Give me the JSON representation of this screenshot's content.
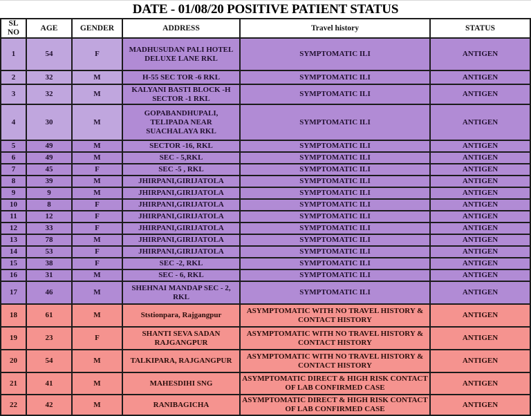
{
  "title": "DATE - 01/08/20 POSITIVE PATIENT STATUS",
  "table": {
    "columns": [
      "SL NO",
      "AGE",
      "GENDER",
      "ADDRESS",
      "Travel history",
      "STATUS"
    ],
    "rows": [
      {
        "sl": "1",
        "age": "54",
        "gender": "F",
        "address": "MADHUSUDAN PALI HOTEL\nDELUXE LANE RKL",
        "travel": "SYMPTOMATIC ILI",
        "status": "ANTIGEN",
        "group": "symptomatic"
      },
      {
        "sl": "2",
        "age": "32",
        "gender": "M",
        "address": "H-55 SEC TOR -6 RKL",
        "travel": "SYMPTOMATIC ILI",
        "status": "ANTIGEN",
        "group": "symptomatic"
      },
      {
        "sl": "3",
        "age": "32",
        "gender": "M",
        "address": "KALYANI BASTI BLOCK -H\nSECTOR -1 RKL",
        "travel": "SYMPTOMATIC ILI",
        "status": "ANTIGEN",
        "group": "symptomatic"
      },
      {
        "sl": "4",
        "age": "30",
        "gender": "M",
        "address": "GOPABANDHUPALI,\nTELIPADA NEAR\nSUACHALAYA RKL",
        "travel": "SYMPTOMATIC ILI",
        "status": "ANTIGEN",
        "group": "symptomatic"
      },
      {
        "sl": "5",
        "age": "49",
        "gender": "M",
        "address": "SECTOR -16, RKL",
        "travel": "SYMPTOMATIC ILI",
        "status": "ANTIGEN",
        "group": "symptomatic"
      },
      {
        "sl": "6",
        "age": "49",
        "gender": "M",
        "address": "SEC - 5,RKL",
        "travel": "SYMPTOMATIC ILI",
        "status": "ANTIGEN",
        "group": "symptomatic"
      },
      {
        "sl": "7",
        "age": "45",
        "gender": "F",
        "address": "SEC -5 , RKL",
        "travel": "SYMPTOMATIC ILI",
        "status": "ANTIGEN",
        "group": "symptomatic"
      },
      {
        "sl": "8",
        "age": "39",
        "gender": "M",
        "address": "JHIRPANI,GIRIJATOLA",
        "travel": "SYMPTOMATIC ILI",
        "status": "ANTIGEN",
        "group": "symptomatic"
      },
      {
        "sl": "9",
        "age": "9",
        "gender": "M",
        "address": "JHIRPANI,GIRIJATOLA",
        "travel": "SYMPTOMATIC ILI",
        "status": "ANTIGEN",
        "group": "symptomatic"
      },
      {
        "sl": "10",
        "age": "8",
        "gender": "F",
        "address": "JHIRPANI,GIRIJATOLA",
        "travel": "SYMPTOMATIC ILI",
        "status": "ANTIGEN",
        "group": "symptomatic"
      },
      {
        "sl": "11",
        "age": "12",
        "gender": "F",
        "address": "JHIRPANI,GIRIJATOLA",
        "travel": "SYMPTOMATIC ILI",
        "status": "ANTIGEN",
        "group": "symptomatic"
      },
      {
        "sl": "12",
        "age": "33",
        "gender": "F",
        "address": "JHIRPANI,GIRIJATOLA",
        "travel": "SYMPTOMATIC ILI",
        "status": "ANTIGEN",
        "group": "symptomatic"
      },
      {
        "sl": "13",
        "age": "78",
        "gender": "M",
        "address": "JHIRPANI,GIRIJATOLA",
        "travel": "SYMPTOMATIC ILI",
        "status": "ANTIGEN",
        "group": "symptomatic"
      },
      {
        "sl": "14",
        "age": "53",
        "gender": "F",
        "address": "JHIRPANI,GIRIJATOLA",
        "travel": "SYMPTOMATIC ILI",
        "status": "ANTIGEN",
        "group": "symptomatic"
      },
      {
        "sl": "15",
        "age": "38",
        "gender": "F",
        "address": "SEC -2, RKL",
        "travel": "SYMPTOMATIC ILI",
        "status": "ANTIGEN",
        "group": "symptomatic"
      },
      {
        "sl": "16",
        "age": "31",
        "gender": "M",
        "address": "SEC - 6, RKL",
        "travel": "SYMPTOMATIC ILI",
        "status": "ANTIGEN",
        "group": "symptomatic"
      },
      {
        "sl": "17",
        "age": "46",
        "gender": "M",
        "address": "SHEHNAI MANDAP SEC - 2,\nRKL",
        "travel": "SYMPTOMATIC ILI",
        "status": "ANTIGEN",
        "group": "symptomatic"
      },
      {
        "sl": "18",
        "age": "61",
        "gender": "M",
        "address": "Ststionpara, Rajgangpur",
        "travel": "ASYMPTOMATIC WITH NO TRAVEL HISTORY &\nCONTACT HISTORY",
        "status": "ANTIGEN",
        "group": "asymptomatic"
      },
      {
        "sl": "19",
        "age": "23",
        "gender": "F",
        "address": "SHANTI SEVA SADAN\nRAJGANGPUR",
        "travel": "ASYMPTOMATIC WITH NO TRAVEL HISTORY &\nCONTACT HISTORY",
        "status": "ANTIGEN",
        "group": "asymptomatic"
      },
      {
        "sl": "20",
        "age": "54",
        "gender": "M",
        "address": "TALKIPARA, RAJGANGPUR",
        "travel": "ASYMPTOMATIC WITH NO TRAVEL HISTORY &\nCONTACT HISTORY",
        "status": "ANTIGEN",
        "group": "asymptomatic"
      },
      {
        "sl": "21",
        "age": "41",
        "gender": "M",
        "address": "MAHESDIHI SNG",
        "travel": "ASYMPTOMATIC DIRECT & HIGH RISK CONTACT\nOF LAB CONFIRMED CASE",
        "status": "ANTIGEN",
        "group": "asymptomatic"
      },
      {
        "sl": "22",
        "age": "42",
        "gender": "M",
        "address": "RANIBAGICHA",
        "travel": "ASYMPTOMATIC DIRECT & HIGH RISK CONTACT\nOF LAB CONFIRMED CASE",
        "status": "ANTIGEN",
        "group": "asymptomatic"
      }
    ]
  },
  "colors": {
    "symptomatic_row_bg": "#b18bd5",
    "symptomatic_row_bg_light": "#c0a6de",
    "asymptomatic_row_bg": "#f5938f",
    "header_bg": "#ffffff",
    "border": "#1b1b1b",
    "symptomatic_text": "#20102e",
    "asymptomatic_text": "#2b0f0c"
  }
}
